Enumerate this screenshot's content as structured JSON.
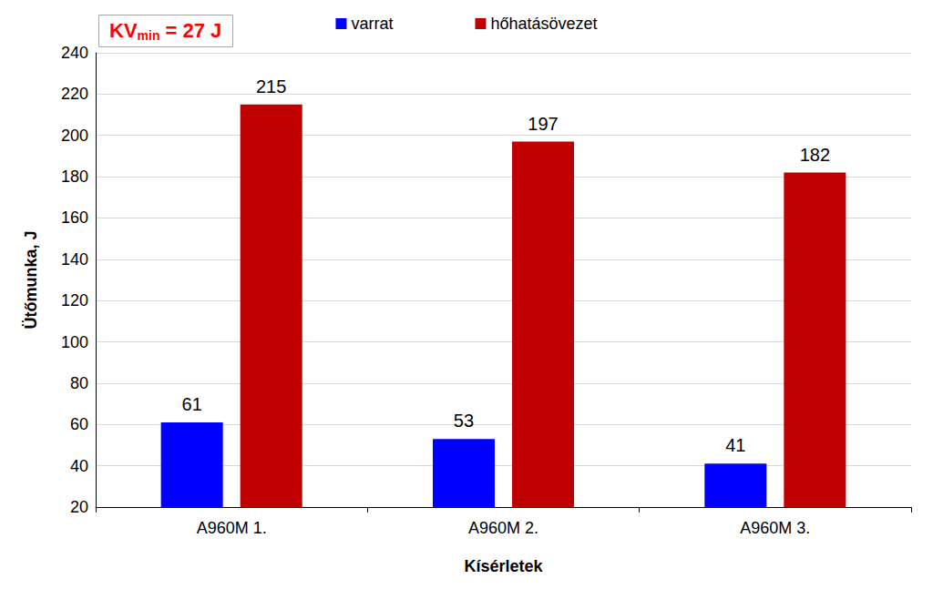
{
  "chart_data": {
    "type": "bar",
    "categories": [
      "A960M 1.",
      "A960M 2.",
      "A960M 3."
    ],
    "series": [
      {
        "name": "varrat",
        "color": "#0000ff",
        "values": [
          61,
          53,
          41
        ]
      },
      {
        "name": "hőhatásövezet",
        "color": "#c00000",
        "values": [
          215,
          197,
          182
        ]
      }
    ],
    "x_label": "Kísérletek",
    "y_label": "Ütőmunka, J",
    "annotations": [
      {
        "text": "KVmin = 27 J",
        "subscript": "min",
        "color": "#ff0000"
      }
    ],
    "ylim": [
      20,
      240
    ],
    "yticks": [
      20,
      40,
      60,
      80,
      100,
      120,
      140,
      160,
      180,
      200,
      220,
      240
    ],
    "grid": true,
    "legend": "top",
    "data_labels": true
  }
}
